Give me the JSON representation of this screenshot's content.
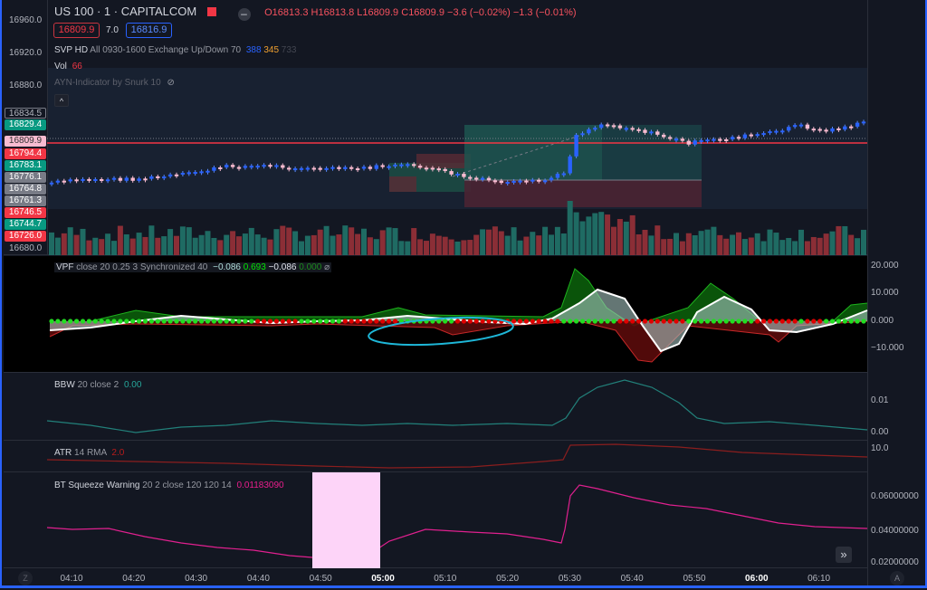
{
  "header": {
    "symbol": "US 100 · 1 · CAPITALCOM",
    "open": "O16813.3",
    "high": "H16813.8",
    "low": "L16809.9",
    "close": "C16809.9",
    "change": "−3.6 (−0.02%)",
    "change2": "−1.3 (−0.01%)",
    "sell": "16809.9",
    "spread": "7.0",
    "buy": "16816.9"
  },
  "svp": {
    "label": "SVP HD",
    "params": "All 0930-1600 Exchange Up/Down 70",
    "up": "388",
    "down": "345",
    "total": "733"
  },
  "vol": {
    "label": "Vol",
    "value": "66"
  },
  "ayn": {
    "label": "AYN-Indicator by Snurk 10"
  },
  "price_axis": [
    "16960.0",
    "16920.0",
    "16880.0",
    "16680.0"
  ],
  "price_tags": [
    {
      "v": "16834.5",
      "bg": "#131722",
      "fg": "#b2b5be"
    },
    {
      "v": "16829.4",
      "bg": "#089981",
      "fg": "#fff"
    },
    {
      "v": "16809.9",
      "bg": "#f8bbd0",
      "fg": "#333"
    },
    {
      "v": "16794.4",
      "bg": "#f23645",
      "fg": "#fff"
    },
    {
      "v": "16783.1",
      "bg": "#089981",
      "fg": "#fff"
    },
    {
      "v": "16776.1",
      "bg": "#787b86",
      "fg": "#fff"
    },
    {
      "v": "16764.8",
      "bg": "#787b86",
      "fg": "#fff"
    },
    {
      "v": "16761.3",
      "bg": "#787b86",
      "fg": "#fff"
    },
    {
      "v": "16746.5",
      "bg": "#f23645",
      "fg": "#fff"
    },
    {
      "v": "16744.7",
      "bg": "#089981",
      "fg": "#fff"
    },
    {
      "v": "16726.0",
      "bg": "#f23645",
      "fg": "#fff"
    }
  ],
  "vpf": {
    "label": "VPF",
    "params": "close 20 0.25 3 Synchronized 40",
    "v1": "−0.086",
    "v2": "0.693",
    "v3": "−0.086",
    "v4": "0.000",
    "axis": [
      "20.000",
      "10.000",
      "0.000",
      "−10.000"
    ]
  },
  "bbw": {
    "label": "BBW",
    "params": "20 close 2",
    "value": "0.00",
    "axis": [
      "0.01",
      "0.00"
    ]
  },
  "atr": {
    "label": "ATR",
    "params": "14 RMA",
    "value": "2.0",
    "axis": [
      "10.0"
    ]
  },
  "bt": {
    "label": "BT Squeeze Warning",
    "params": "20 2 close 120 120 14",
    "value": "0.01183090",
    "axis": [
      "0.06000000",
      "0.04000000",
      "0.02000000"
    ]
  },
  "time_axis": [
    "04:10",
    "04:20",
    "04:30",
    "04:40",
    "04:50",
    "05:00",
    "05:10",
    "05:20",
    "05:30",
    "05:40",
    "05:50",
    "06:00",
    "06:10"
  ],
  "buttons": {
    "z": "Z",
    "a": "A",
    "scroll": "»",
    "collapse": "^"
  }
}
